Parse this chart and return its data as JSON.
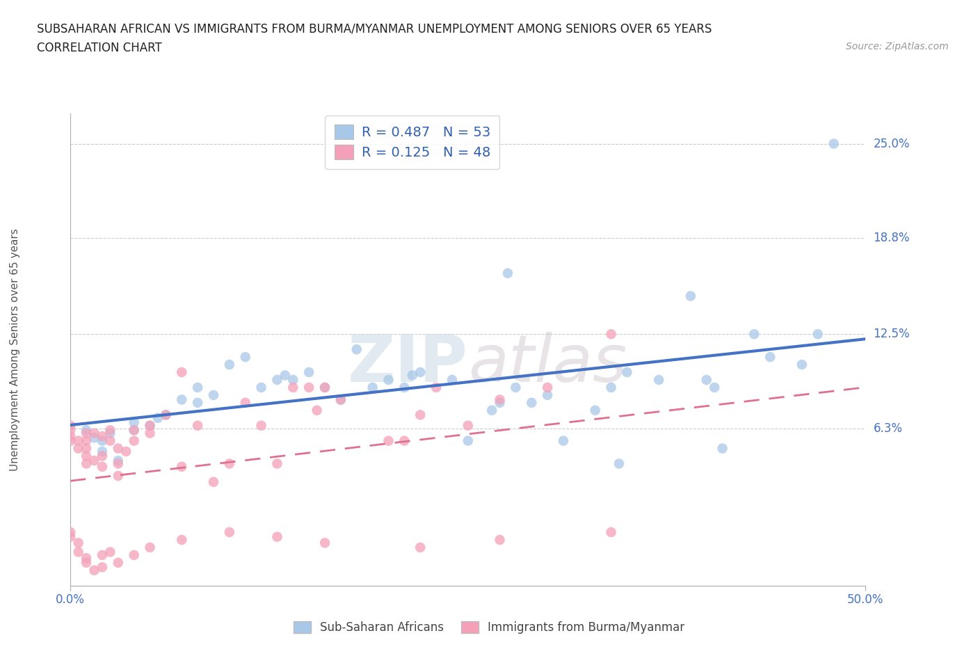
{
  "title_line1": "SUBSAHARAN AFRICAN VS IMMIGRANTS FROM BURMA/MYANMAR UNEMPLOYMENT AMONG SENIORS OVER 65 YEARS",
  "title_line2": "CORRELATION CHART",
  "source": "Source: ZipAtlas.com",
  "ylabel": "Unemployment Among Seniors over 65 years",
  "watermark": "ZIPatlas",
  "x_min": 0.0,
  "x_max": 0.5,
  "y_min": -0.04,
  "y_max": 0.27,
  "y_ticks": [
    0.063,
    0.125,
    0.188,
    0.25
  ],
  "y_tick_labels": [
    "6.3%",
    "12.5%",
    "18.8%",
    "25.0%"
  ],
  "x_ticks": [
    0.0,
    0.5
  ],
  "x_tick_labels": [
    "0.0%",
    "50.0%"
  ],
  "series1_color": "#a8c8e8",
  "series2_color": "#f4a0b8",
  "trend1_color": "#4472c4",
  "trend2_color": "#e07090",
  "series1_label": "Sub-Saharan Africans",
  "series2_label": "Immigrants from Burma/Myanmar",
  "R1": 0.487,
  "N1": 53,
  "R2": 0.125,
  "N2": 48,
  "background_color": "#ffffff",
  "grid_color": "#cccccc",
  "legend_color": "#3060b0",
  "series1_x": [
    0.01,
    0.015,
    0.02,
    0.02,
    0.025,
    0.03,
    0.04,
    0.04,
    0.05,
    0.055,
    0.06,
    0.07,
    0.08,
    0.08,
    0.09,
    0.1,
    0.11,
    0.12,
    0.13,
    0.135,
    0.14,
    0.15,
    0.16,
    0.17,
    0.18,
    0.19,
    0.2,
    0.21,
    0.215,
    0.22,
    0.24,
    0.25,
    0.265,
    0.27,
    0.275,
    0.28,
    0.29,
    0.3,
    0.31,
    0.33,
    0.34,
    0.345,
    0.35,
    0.37,
    0.39,
    0.4,
    0.405,
    0.41,
    0.43,
    0.44,
    0.46,
    0.47,
    0.48
  ],
  "series1_y": [
    0.062,
    0.057,
    0.048,
    0.055,
    0.06,
    0.042,
    0.062,
    0.067,
    0.065,
    0.07,
    0.072,
    0.082,
    0.08,
    0.09,
    0.085,
    0.105,
    0.11,
    0.09,
    0.095,
    0.098,
    0.095,
    0.1,
    0.09,
    0.082,
    0.115,
    0.09,
    0.095,
    0.09,
    0.098,
    0.1,
    0.095,
    0.055,
    0.075,
    0.08,
    0.165,
    0.09,
    0.08,
    0.085,
    0.055,
    0.075,
    0.09,
    0.04,
    0.1,
    0.095,
    0.15,
    0.095,
    0.09,
    0.05,
    0.125,
    0.11,
    0.105,
    0.125,
    0.25
  ],
  "series2_x": [
    0.0,
    0.0,
    0.0,
    0.0,
    0.005,
    0.005,
    0.01,
    0.01,
    0.01,
    0.01,
    0.01,
    0.015,
    0.015,
    0.02,
    0.02,
    0.02,
    0.025,
    0.025,
    0.03,
    0.03,
    0.03,
    0.035,
    0.04,
    0.04,
    0.05,
    0.05,
    0.06,
    0.07,
    0.07,
    0.08,
    0.09,
    0.1,
    0.11,
    0.12,
    0.13,
    0.14,
    0.15,
    0.155,
    0.16,
    0.17,
    0.2,
    0.21,
    0.22,
    0.23,
    0.25,
    0.27,
    0.3,
    0.34
  ],
  "series2_y": [
    0.055,
    0.058,
    0.062,
    0.065,
    0.05,
    0.055,
    0.04,
    0.045,
    0.05,
    0.055,
    0.06,
    0.042,
    0.06,
    0.038,
    0.045,
    0.058,
    0.055,
    0.062,
    0.032,
    0.04,
    0.05,
    0.048,
    0.055,
    0.062,
    0.06,
    0.065,
    0.072,
    0.038,
    0.1,
    0.065,
    0.028,
    0.04,
    0.08,
    0.065,
    0.04,
    0.09,
    0.09,
    0.075,
    0.09,
    0.082,
    0.055,
    0.055,
    0.072,
    0.09,
    0.065,
    0.082,
    0.09,
    0.125
  ],
  "series2_x_low": [
    0.0,
    0.0,
    0.005,
    0.005,
    0.01,
    0.01,
    0.015,
    0.02,
    0.02,
    0.025,
    0.03,
    0.04,
    0.05,
    0.07,
    0.1,
    0.13,
    0.16,
    0.22,
    0.27,
    0.34
  ],
  "series2_y_low": [
    -0.005,
    -0.008,
    -0.012,
    -0.018,
    -0.022,
    -0.025,
    -0.03,
    -0.02,
    -0.028,
    -0.018,
    -0.025,
    -0.02,
    -0.015,
    -0.01,
    -0.005,
    -0.008,
    -0.012,
    -0.015,
    -0.01,
    -0.005
  ]
}
